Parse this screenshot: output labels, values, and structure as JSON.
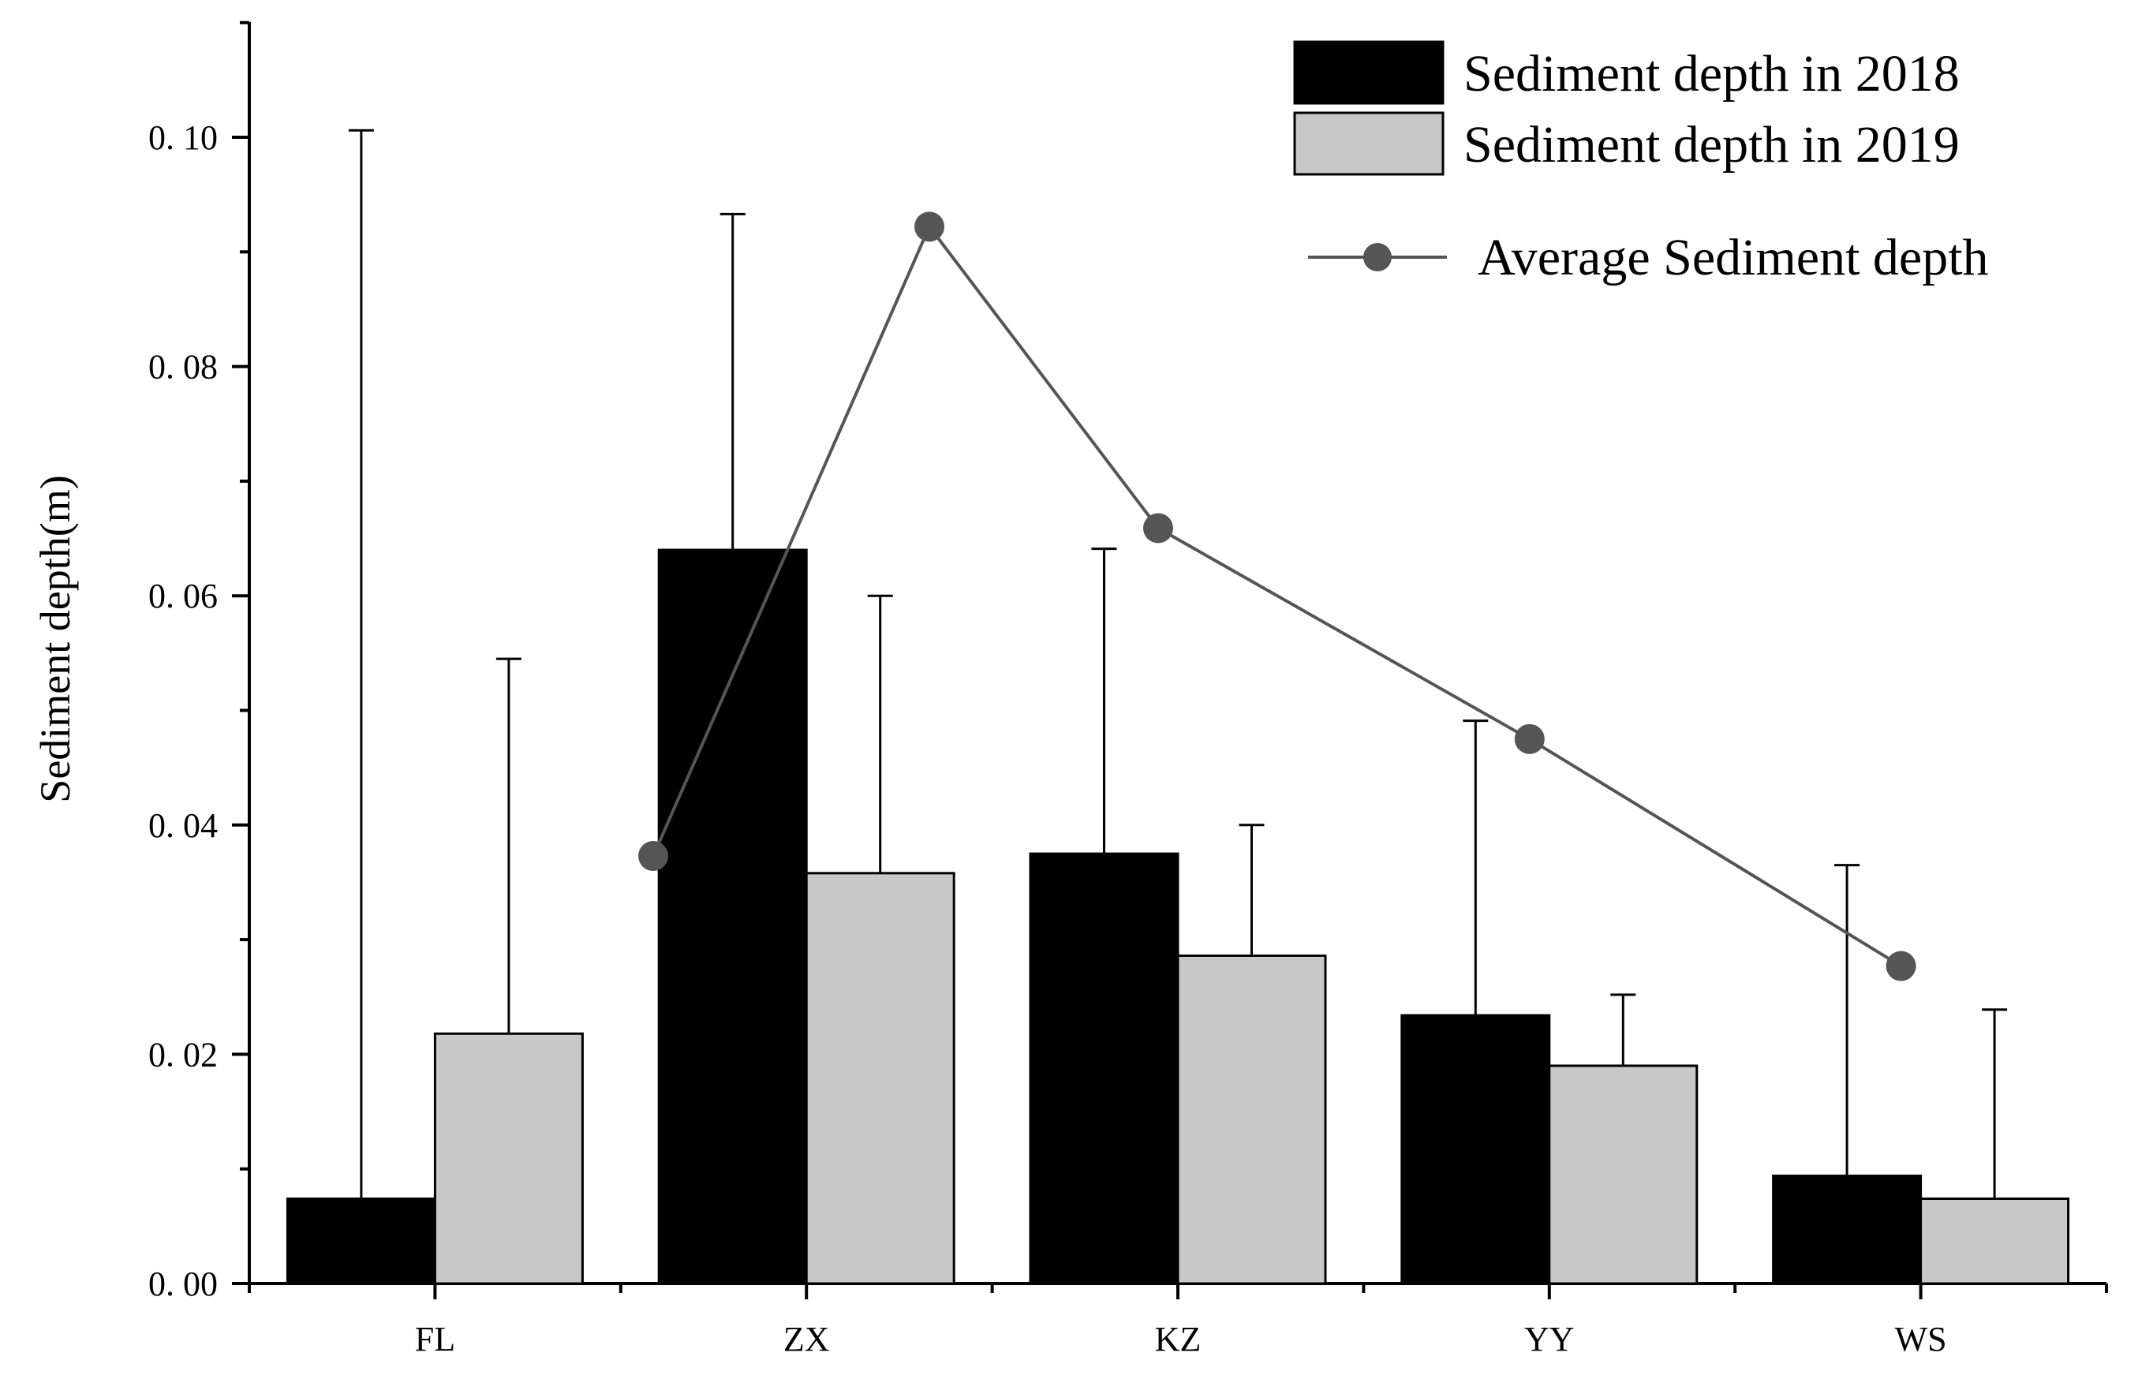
{
  "chart_data": {
    "type": "bar",
    "title": "",
    "xlabel": "",
    "ylabel": "Sediment depth(m)",
    "categories": [
      "FL",
      "ZX",
      "KZ",
      "YY",
      "WS"
    ],
    "ylim": [
      0,
      0.11
    ],
    "yticks": [
      0.0,
      0.02,
      0.04,
      0.06,
      0.08,
      0.1
    ],
    "ytick_labels": [
      "0. 00",
      "0. 02",
      "0. 04",
      "0. 06",
      "0. 08",
      "0. 10"
    ],
    "series": [
      {
        "name": "Sediment depth in 2018",
        "color": "#000000",
        "values": [
          0.0074,
          0.064,
          0.0375,
          0.0234,
          0.0094
        ],
        "error_top": [
          0.1006,
          0.0933,
          0.0641,
          0.0491,
          0.0365
        ]
      },
      {
        "name": "Sediment depth in 2019",
        "color": "#c8c8c8",
        "values": [
          0.0218,
          0.0358,
          0.0286,
          0.019,
          0.0074
        ],
        "error_top": [
          0.0545,
          0.06,
          0.04,
          0.0252,
          0.0239
        ]
      }
    ],
    "line_series": {
      "name": "Average Sediment depth",
      "color": "#555555",
      "values": [
        0.0373,
        0.0922,
        0.0659,
        0.0475,
        0.0277
      ]
    },
    "legend_position": "top-right"
  }
}
